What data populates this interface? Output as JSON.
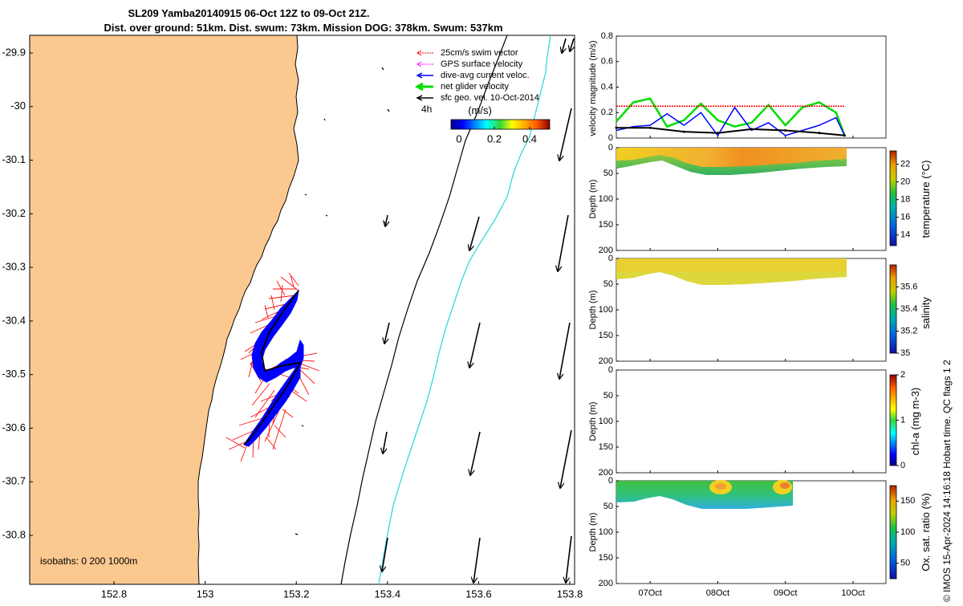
{
  "title": {
    "line1": "SL209 Yamba20140915 06-Oct 12Z to 09-Oct 21Z.",
    "line2": "Dist. over ground: 51km. Dist. swum: 73km. Mission DOG: 378km. Swum: 537km"
  },
  "map": {
    "x_ticks": [
      "152.8",
      "153",
      "153.2",
      "153.4",
      "153.6",
      "153.8"
    ],
    "y_ticks": [
      "-29.9",
      "-30",
      "-30.1",
      "-30.2",
      "-30.3",
      "-30.4",
      "-30.5",
      "-30.6",
      "-30.7",
      "-30.8"
    ],
    "isobaths_label": "isobaths: 0   200  1000m",
    "time_marker": "4h",
    "colorbar_title": "(m/s)",
    "colorbar_ticks": [
      "0",
      "0.2",
      "0.4"
    ],
    "legend": [
      {
        "label": "25cm/s swim vector",
        "color": "#ff0000"
      },
      {
        "label": "GPS surface velocity",
        "color": "#ff00ff"
      },
      {
        "label": "dive-avg current veloc.",
        "color": "#0000ff"
      },
      {
        "label": "net glider velocity",
        "color": "#00dd00"
      },
      {
        "label": "sfc geo. vel. 10-Oct-2014",
        "color": "#000000"
      }
    ],
    "colors": {
      "land": "#fbc890",
      "cyan_line": "#36d8d8",
      "glider_red": "#ff0000",
      "glider_blue": "#0000ff"
    }
  },
  "right_panels": {
    "x_ticks": [
      "07Oct",
      "08Oct",
      "09Oct",
      "10Oct"
    ],
    "depth_label": "Depth (m)",
    "depth_ticks": [
      "0",
      "50",
      "100",
      "150",
      "200"
    ],
    "velocity": {
      "ylabel": "velocity magnitude (m/s)",
      "y_ticks": [
        "0",
        "0.2",
        "0.4",
        "0.6",
        "0.8"
      ]
    },
    "temperature": {
      "label": "temperature (°C)",
      "ticks": [
        "14",
        "16",
        "18",
        "20",
        "22"
      ]
    },
    "salinity": {
      "label": "salinity",
      "ticks": [
        "35",
        "35.2",
        "35.4",
        "35.6"
      ]
    },
    "chla": {
      "label": "chl-a (mg m-3)",
      "ticks": [
        "0",
        "1",
        "2"
      ]
    },
    "oxygen": {
      "label": "Ox. sat. ratio (%)",
      "ticks": [
        "50",
        "100",
        "150"
      ]
    }
  },
  "footer": "© IMOS 15-Apr-2024 14:16:18 Hobart time. QC flags 1  2",
  "chart_data": [
    {
      "type": "line",
      "title": "",
      "ylabel": "velocity magnitude (m/s)",
      "ylim": [
        0,
        0.8
      ],
      "xlim": [
        "2014-10-06 12:00",
        "2014-10-10 00:00"
      ],
      "series": [
        {
          "name": "net glider velocity",
          "color": "#00dd00",
          "x": [
            "2014-10-06 12:00",
            "2014-10-06 18:00",
            "2014-10-07 00:00",
            "2014-10-07 06:00",
            "2014-10-07 12:00",
            "2014-10-07 18:00",
            "2014-10-08 00:00",
            "2014-10-08 06:00",
            "2014-10-08 12:00",
            "2014-10-08 18:00",
            "2014-10-09 00:00",
            "2014-10-09 06:00",
            "2014-10-09 12:00",
            "2014-10-09 18:00",
            "2014-10-09 21:00"
          ],
          "values": [
            0.13,
            0.28,
            0.31,
            0.09,
            0.14,
            0.27,
            0.14,
            0.09,
            0.12,
            0.26,
            0.1,
            0.24,
            0.28,
            0.2,
            0.02
          ]
        },
        {
          "name": "dive-avg current veloc.",
          "color": "#0000ff",
          "x": [
            "2014-10-06 12:00",
            "2014-10-06 18:00",
            "2014-10-07 00:00",
            "2014-10-07 06:00",
            "2014-10-07 12:00",
            "2014-10-07 18:00",
            "2014-10-08 00:00",
            "2014-10-08 06:00",
            "2014-10-08 12:00",
            "2014-10-08 18:00",
            "2014-10-09 00:00",
            "2014-10-09 06:00",
            "2014-10-09 12:00",
            "2014-10-09 18:00",
            "2014-10-09 21:00"
          ],
          "values": [
            0.06,
            0.09,
            0.1,
            0.19,
            0.1,
            0.2,
            0.02,
            0.24,
            0.06,
            0.12,
            0.02,
            0.06,
            0.1,
            0.16,
            0.02
          ]
        },
        {
          "name": "sfc geo. vel. 10-Oct-2014",
          "color": "#000000",
          "x": [
            "2014-10-06 12:00",
            "2014-10-07 00:00",
            "2014-10-07 12:00",
            "2014-10-08 00:00",
            "2014-10-08 12:00",
            "2014-10-09 00:00",
            "2014-10-09 12:00",
            "2014-10-09 21:00"
          ],
          "values": [
            0.08,
            0.08,
            0.05,
            0.04,
            0.07,
            0.06,
            0.04,
            0.02
          ]
        },
        {
          "name": "25cm/s swim vector",
          "color": "#ff0000",
          "x": [
            "2014-10-06 12:00",
            "2014-10-09 21:00"
          ],
          "values": [
            0.25,
            0.25
          ]
        }
      ]
    }
  ]
}
